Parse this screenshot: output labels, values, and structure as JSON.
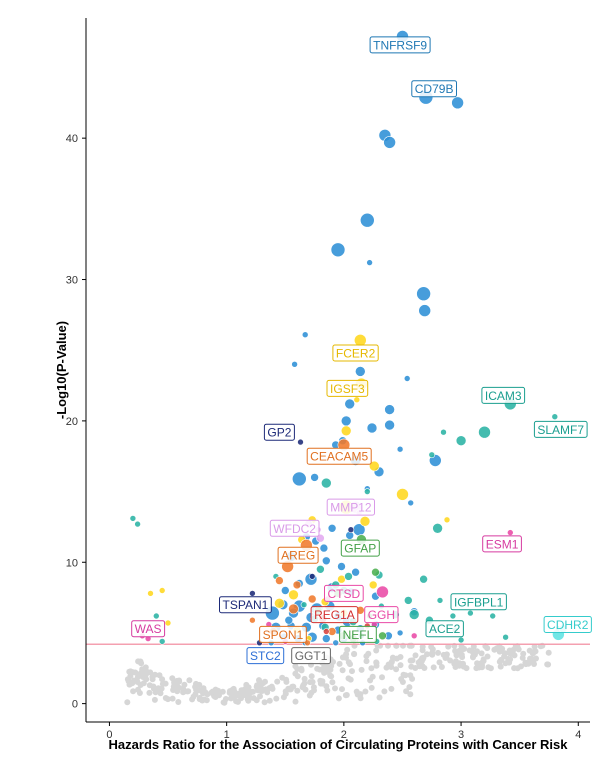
{
  "chart_data": {
    "type": "scatter",
    "xlabel": "Hazards Ratio for the Association of Circulating Proteins with Cancer Risk",
    "ylabel": "-Log10(P-Value)",
    "xlim": [
      -0.2,
      4.1
    ],
    "ylim": [
      -1.3,
      48.5
    ],
    "x_ticks": [
      0,
      1,
      2,
      3,
      4
    ],
    "y_ticks": [
      0,
      10,
      20,
      30,
      40
    ],
    "grid": false,
    "threshold_line": {
      "y": 4.2,
      "color": "#f4a0b0"
    },
    "palette": {
      "blue": "#2d8fd6",
      "yellow": "#ffd71e",
      "teal": "#2ab3a4",
      "orange": "#f07a2c",
      "pink": "#e94aa6",
      "lavender": "#e3a8f0",
      "green": "#4caf50",
      "navy": "#1d2a78",
      "red": "#d8413c",
      "cyan": "#5ee3e3",
      "gray": "#d6d6d6"
    },
    "labels": [
      {
        "text": "TNFRSF9",
        "x": 2.48,
        "y": 46.6,
        "color": "#1f78b4"
      },
      {
        "text": "CD79B",
        "x": 2.77,
        "y": 43.5,
        "color": "#1f78b4"
      },
      {
        "text": "FCER2",
        "x": 2.1,
        "y": 24.8,
        "color": "#e6b800"
      },
      {
        "text": "IGSF3",
        "x": 2.03,
        "y": 22.3,
        "color": "#e6b800"
      },
      {
        "text": "ICAM3",
        "x": 3.36,
        "y": 21.8,
        "color": "#1a9e8f"
      },
      {
        "text": "SLAMF7",
        "x": 3.85,
        "y": 19.4,
        "color": "#1a9e8f"
      },
      {
        "text": "GP2",
        "x": 1.45,
        "y": 19.2,
        "color": "#1d2a78"
      },
      {
        "text": "CEACAM5",
        "x": 1.96,
        "y": 17.5,
        "color": "#e07020"
      },
      {
        "text": "MMP12",
        "x": 2.06,
        "y": 13.9,
        "color": "#d99ae8"
      },
      {
        "text": "WFDC2",
        "x": 1.58,
        "y": 12.4,
        "color": "#d99ae8"
      },
      {
        "text": "ESM1",
        "x": 3.35,
        "y": 11.3,
        "color": "#d63ba0"
      },
      {
        "text": "GFAP",
        "x": 2.14,
        "y": 11.0,
        "color": "#43a047"
      },
      {
        "text": "AREG",
        "x": 1.61,
        "y": 10.5,
        "color": "#e07020"
      },
      {
        "text": "TSPAN1",
        "x": 1.16,
        "y": 7.0,
        "color": "#1d2a78"
      },
      {
        "text": "IGFBPL1",
        "x": 3.15,
        "y": 7.2,
        "color": "#1a9e8f"
      },
      {
        "text": "CTSD",
        "x": 2.0,
        "y": 7.8,
        "color": "#e94aa6"
      },
      {
        "text": "REG1A",
        "x": 1.92,
        "y": 6.3,
        "color": "#d32f2f"
      },
      {
        "text": "GGH",
        "x": 2.32,
        "y": 6.3,
        "color": "#e94aa6"
      },
      {
        "text": "WAS",
        "x": 0.33,
        "y": 5.3,
        "color": "#d63ba0"
      },
      {
        "text": "ACE2",
        "x": 2.86,
        "y": 5.3,
        "color": "#1a9e8f"
      },
      {
        "text": "CDHR2",
        "x": 3.91,
        "y": 5.6,
        "color": "#35cccc"
      },
      {
        "text": "SPON1",
        "x": 1.48,
        "y": 4.9,
        "color": "#e07020"
      },
      {
        "text": "NEFL",
        "x": 2.12,
        "y": 4.9,
        "color": "#43a047"
      },
      {
        "text": "STC2",
        "x": 1.33,
        "y": 3.4,
        "color": "#2d6fd6"
      },
      {
        "text": "GGT1",
        "x": 1.72,
        "y": 3.4,
        "color": "#666666"
      }
    ],
    "series": [
      {
        "color": "blue",
        "points": [
          [
            2.5,
            47.2,
            6
          ],
          [
            2.7,
            42.9,
            7
          ],
          [
            2.97,
            42.5,
            6
          ],
          [
            2.35,
            40.2,
            6
          ],
          [
            2.39,
            39.7,
            6
          ],
          [
            2.2,
            34.2,
            7
          ],
          [
            2.22,
            31.2,
            3
          ],
          [
            1.95,
            32.1,
            7
          ],
          [
            2.68,
            29.0,
            7
          ],
          [
            2.69,
            27.8,
            6
          ],
          [
            1.67,
            26.1,
            3
          ],
          [
            1.58,
            24.0,
            3
          ],
          [
            2.14,
            23.5,
            5
          ],
          [
            2.54,
            23.0,
            3
          ],
          [
            2.05,
            21.2,
            5
          ],
          [
            2.39,
            20.8,
            5
          ],
          [
            2.39,
            19.7,
            5
          ],
          [
            2.02,
            20.0,
            5
          ],
          [
            2.24,
            19.5,
            5
          ],
          [
            1.99,
            18.6,
            4
          ],
          [
            2.48,
            18.0,
            3
          ],
          [
            2.78,
            17.2,
            6
          ],
          [
            2.1,
            17.2,
            5
          ],
          [
            1.93,
            18.3,
            4
          ],
          [
            2.3,
            16.4,
            5
          ],
          [
            1.75,
            16.0,
            4
          ],
          [
            1.62,
            15.9,
            7
          ],
          [
            2.2,
            15.2,
            3
          ],
          [
            2.57,
            14.2,
            3
          ],
          [
            2.13,
            12.3,
            6
          ],
          [
            2.05,
            11.9,
            4
          ],
          [
            1.9,
            12.4,
            4
          ],
          [
            1.68,
            11.8,
            4
          ],
          [
            1.76,
            11.5,
            4
          ],
          [
            1.83,
            11.0,
            4
          ],
          [
            1.55,
            10.4,
            5
          ],
          [
            1.85,
            10.1,
            4
          ],
          [
            1.98,
            9.7,
            4
          ],
          [
            2.1,
            9.3,
            4
          ],
          [
            1.72,
            8.8,
            6
          ],
          [
            1.62,
            8.5,
            4
          ],
          [
            1.5,
            8.0,
            4
          ],
          [
            1.9,
            8.2,
            5
          ],
          [
            2.06,
            7.9,
            4
          ],
          [
            2.27,
            7.6,
            4
          ],
          [
            1.48,
            7.0,
            5
          ],
          [
            1.62,
            6.9,
            6
          ],
          [
            1.77,
            6.7,
            6
          ],
          [
            1.39,
            6.4,
            7
          ],
          [
            1.57,
            6.4,
            5
          ],
          [
            1.72,
            6.1,
            5
          ],
          [
            1.96,
            6.2,
            5
          ],
          [
            2.03,
            5.8,
            5
          ],
          [
            1.42,
            5.4,
            5
          ],
          [
            1.55,
            5.5,
            4
          ],
          [
            1.68,
            5.4,
            5
          ],
          [
            1.82,
            5.5,
            4
          ],
          [
            1.95,
            5.2,
            4
          ],
          [
            2.14,
            5.3,
            4
          ],
          [
            2.27,
            5.6,
            4
          ],
          [
            1.49,
            4.7,
            4
          ],
          [
            1.61,
            4.6,
            4
          ],
          [
            1.73,
            4.7,
            5
          ],
          [
            1.85,
            4.6,
            4
          ],
          [
            2.0,
            4.6,
            4
          ],
          [
            2.38,
            4.8,
            4
          ],
          [
            1.38,
            4.3,
            3
          ],
          [
            1.67,
            4.3,
            3
          ],
          [
            1.93,
            4.3,
            3
          ],
          [
            2.16,
            4.3,
            3
          ],
          [
            1.53,
            5.9,
            4
          ],
          [
            1.88,
            6.9,
            5
          ],
          [
            2.6,
            6.5,
            4
          ],
          [
            2.48,
            5.0,
            3
          ]
        ]
      },
      {
        "color": "yellow",
        "points": [
          [
            2.14,
            25.7,
            6
          ],
          [
            2.15,
            22.6,
            6
          ],
          [
            2.11,
            21.5,
            3
          ],
          [
            2.02,
            19.3,
            5
          ],
          [
            2.26,
            16.8,
            5
          ],
          [
            2.5,
            14.8,
            6
          ],
          [
            2.02,
            13.9,
            7
          ],
          [
            2.18,
            12.9,
            5
          ],
          [
            2.88,
            13.0,
            3
          ],
          [
            1.73,
            13.0,
            4
          ],
          [
            1.64,
            11.6,
            4
          ],
          [
            0.35,
            7.8,
            3
          ],
          [
            0.45,
            8.0,
            3
          ],
          [
            0.5,
            5.7,
            3
          ],
          [
            1.57,
            7.7,
            5
          ],
          [
            1.84,
            7.2,
            4
          ],
          [
            1.98,
            8.8,
            4
          ],
          [
            2.25,
            8.4,
            4
          ],
          [
            1.45,
            7.1,
            5
          ],
          [
            1.6,
            5.2,
            4
          ],
          [
            2.0,
            6.4,
            4
          ],
          [
            1.7,
            4.6,
            3
          ]
        ]
      },
      {
        "color": "teal",
        "points": [
          [
            3.42,
            21.2,
            6
          ],
          [
            3.8,
            20.3,
            3
          ],
          [
            3.2,
            19.2,
            6
          ],
          [
            3.0,
            18.6,
            5
          ],
          [
            2.85,
            19.2,
            3
          ],
          [
            2.75,
            17.6,
            3
          ],
          [
            1.85,
            15.6,
            5
          ],
          [
            2.2,
            15.0,
            3
          ],
          [
            2.8,
            12.4,
            5
          ],
          [
            0.2,
            13.1,
            3
          ],
          [
            0.24,
            12.7,
            3
          ],
          [
            1.8,
            9.5,
            4
          ],
          [
            2.04,
            9.0,
            4
          ],
          [
            2.3,
            9.1,
            4
          ],
          [
            2.68,
            8.8,
            4
          ],
          [
            1.42,
            9.0,
            3
          ],
          [
            1.93,
            8.4,
            4
          ],
          [
            1.66,
            7.0,
            3
          ],
          [
            2.32,
            6.9,
            3
          ],
          [
            2.55,
            7.3,
            4
          ],
          [
            2.82,
            7.3,
            3
          ],
          [
            2.6,
            6.3,
            5
          ],
          [
            2.73,
            5.9,
            4
          ],
          [
            2.93,
            6.2,
            3
          ],
          [
            3.08,
            6.4,
            3
          ],
          [
            3.27,
            6.2,
            3
          ],
          [
            2.95,
            5.2,
            3
          ],
          [
            3.0,
            4.5,
            3
          ],
          [
            3.38,
            4.7,
            3
          ],
          [
            0.4,
            6.2,
            3
          ],
          [
            0.45,
            4.4,
            3
          ],
          [
            1.84,
            5.4,
            4
          ],
          [
            2.08,
            5.8,
            4
          ],
          [
            2.44,
            6.3,
            4
          ],
          [
            1.75,
            6.0,
            4
          ],
          [
            2.15,
            4.8,
            3
          ],
          [
            2.28,
            4.4,
            3
          ],
          [
            3.83,
            5.3,
            3
          ],
          [
            2.0,
            8.0,
            4
          ]
        ]
      },
      {
        "color": "orange",
        "points": [
          [
            2.0,
            18.3,
            6
          ],
          [
            1.68,
            11.2,
            6
          ],
          [
            1.52,
            9.7,
            6
          ],
          [
            1.6,
            8.4,
            4
          ],
          [
            1.73,
            7.4,
            4
          ],
          [
            1.22,
            5.9,
            3
          ],
          [
            1.4,
            5.1,
            4
          ],
          [
            1.9,
            5.1,
            4
          ],
          [
            1.45,
            8.7,
            4
          ],
          [
            2.14,
            6.6,
            4
          ],
          [
            1.69,
            4.3,
            3
          ],
          [
            1.57,
            6.7,
            5
          ]
        ]
      },
      {
        "color": "pink",
        "points": [
          [
            3.42,
            12.1,
            3
          ],
          [
            2.33,
            7.9,
            6
          ],
          [
            0.28,
            4.8,
            3
          ],
          [
            0.33,
            4.6,
            3
          ],
          [
            2.6,
            4.8,
            3
          ],
          [
            1.36,
            5.6,
            3
          ],
          [
            1.86,
            7.4,
            3
          ],
          [
            2.26,
            5.6,
            3
          ],
          [
            2.1,
            4.5,
            3
          ],
          [
            1.5,
            4.4,
            3
          ]
        ]
      },
      {
        "color": "lavender",
        "points": [
          [
            2.1,
            13.9,
            6
          ],
          [
            1.7,
            12.7,
            4
          ],
          [
            1.78,
            12.3,
            3
          ],
          [
            1.8,
            11.7,
            4
          ],
          [
            2.13,
            13.5,
            3
          ]
        ]
      },
      {
        "color": "green",
        "points": [
          [
            2.15,
            11.6,
            5
          ],
          [
            2.27,
            9.3,
            4
          ],
          [
            1.95,
            7.8,
            4
          ],
          [
            1.78,
            6.6,
            4
          ],
          [
            1.99,
            4.8,
            4
          ],
          [
            2.08,
            4.6,
            4
          ],
          [
            2.33,
            4.8,
            4
          ],
          [
            2.22,
            6.2,
            3
          ]
        ]
      },
      {
        "color": "navy",
        "points": [
          [
            1.63,
            18.5,
            3
          ],
          [
            1.22,
            7.8,
            3
          ],
          [
            1.28,
            4.3,
            3
          ],
          [
            2.06,
            12.3,
            3
          ],
          [
            1.73,
            9.0,
            3
          ]
        ]
      },
      {
        "color": "red",
        "points": [
          [
            1.82,
            6.0,
            4
          ],
          [
            1.85,
            5.1,
            3
          ],
          [
            2.2,
            5.5,
            3
          ]
        ]
      },
      {
        "color": "cyan",
        "points": [
          [
            3.83,
            4.9,
            6
          ],
          [
            3.87,
            5.3,
            4
          ]
        ]
      }
    ]
  }
}
